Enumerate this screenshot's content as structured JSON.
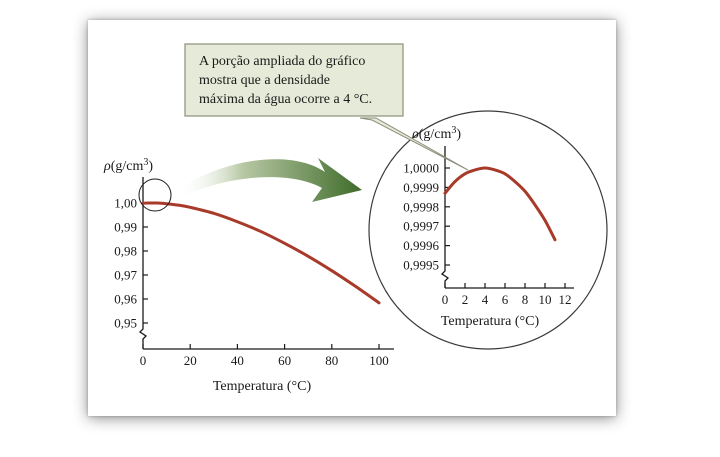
{
  "chart_data": [
    {
      "type": "line",
      "ylabel_parts": [
        "ρ(g/cm",
        "3",
        ")"
      ],
      "xlabel": "Temperatura (°C)",
      "xlim": [
        0,
        100
      ],
      "ylim": [
        0.95,
        1.0
      ],
      "xticks": [
        0,
        20,
        40,
        60,
        80,
        100
      ],
      "xtick_labels": [
        "0",
        "20",
        "40",
        "60",
        "80",
        "100"
      ],
      "yticks": [
        0.95,
        0.96,
        0.97,
        0.98,
        0.99,
        1.0
      ],
      "ytick_labels": [
        "0,95",
        "0,96",
        "0,97",
        "0,98",
        "0,99",
        "1,00"
      ],
      "axis_break": true,
      "line_color": "#a83a2a",
      "series": [
        {
          "x": [
            0,
            2,
            4,
            6,
            10,
            15,
            20,
            30,
            40,
            50,
            60,
            70,
            80,
            90,
            100
          ],
          "y": [
            0.9999,
            1.0,
            1.0,
            1.0,
            0.9997,
            0.9991,
            0.9982,
            0.9957,
            0.9922,
            0.9881,
            0.9832,
            0.9778,
            0.9718,
            0.9653,
            0.9584
          ]
        }
      ]
    },
    {
      "type": "line",
      "ylabel_parts": [
        "ρ(g/cm",
        "3",
        ")"
      ],
      "xlabel": "Temperatura (°C)",
      "xlim": [
        0,
        12
      ],
      "ylim": [
        0.9995,
        1.0
      ],
      "xticks": [
        0,
        2,
        4,
        6,
        8,
        10,
        12
      ],
      "xtick_labels": [
        "0",
        "2",
        "4",
        "6",
        "8",
        "10",
        "12"
      ],
      "yticks": [
        0.9995,
        0.9996,
        0.9997,
        0.9998,
        0.9999,
        1.0
      ],
      "ytick_labels": [
        "0,9995",
        "0,9996",
        "0,9997",
        "0,9998",
        "0,9999",
        "1,0000"
      ],
      "axis_break": true,
      "line_color": "#a83a2a",
      "series": [
        {
          "x": [
            0,
            1,
            2,
            3,
            4,
            5,
            6,
            7,
            8,
            9,
            10,
            11
          ],
          "y": [
            0.99987,
            0.99993,
            0.99997,
            0.99999,
            1.0,
            0.99999,
            0.99997,
            0.99993,
            0.99988,
            0.99981,
            0.99973,
            0.99963
          ]
        }
      ]
    }
  ],
  "annotation": {
    "lines": [
      "A porção ampliada do gráfico",
      "mostra que a densidade",
      "máxima da água ocorre a 4 °C."
    ],
    "box_fill": "#e6ead8",
    "box_stroke": "#8a8f7a"
  },
  "colors": {
    "arrow": "#3f6b2a",
    "arrow_light": "#c6d3b6",
    "axis": "#1a1a1a"
  }
}
